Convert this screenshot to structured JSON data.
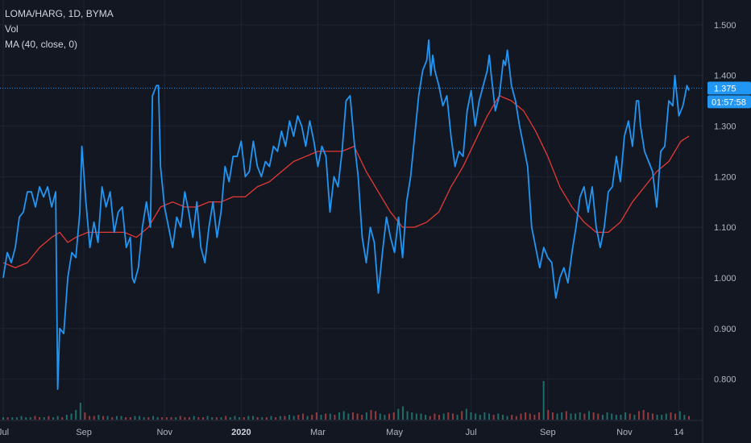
{
  "legend": {
    "symbol": "LOMA/HARG, 1D, BYMA",
    "volume": "Vol",
    "ma": "MA (40, close, 0)"
  },
  "price_axis": {
    "last_price": "1.375",
    "countdown": "01:57:58"
  },
  "colors": {
    "background": "#131722",
    "grid": "#1f2433",
    "price_line": "#2196f3",
    "ma_line": "#e53935",
    "volume_up": "#26a69a",
    "volume_down": "#ef5350",
    "price_tag": "#2196f3"
  },
  "chart_data": {
    "type": "line",
    "yticks": [
      "1.500",
      "1.400",
      "1.300",
      "1.200",
      "1.100",
      "1.000",
      "0.900",
      "0.800"
    ],
    "ylim": [
      0.75,
      1.53
    ],
    "xlim": [
      0,
      340
    ],
    "xticks": [
      {
        "label": "Jul",
        "x": 0
      },
      {
        "label": "Sep",
        "x": 40
      },
      {
        "label": "Nov",
        "x": 80
      },
      {
        "label": "2020",
        "x": 118
      },
      {
        "label": "Mar",
        "x": 156
      },
      {
        "label": "May",
        "x": 194
      },
      {
        "label": "Jul",
        "x": 232
      },
      {
        "label": "Sep",
        "x": 270
      },
      {
        "label": "Nov",
        "x": 308
      },
      {
        "label": "14",
        "x": 335
      }
    ],
    "series": [
      {
        "key": "price",
        "points": [
          [
            0,
            1.0
          ],
          [
            2,
            1.05
          ],
          [
            4,
            1.03
          ],
          [
            6,
            1.06
          ],
          [
            8,
            1.12
          ],
          [
            10,
            1.13
          ],
          [
            12,
            1.17
          ],
          [
            14,
            1.17
          ],
          [
            16,
            1.14
          ],
          [
            18,
            1.18
          ],
          [
            20,
            1.16
          ],
          [
            22,
            1.18
          ],
          [
            24,
            1.14
          ],
          [
            26,
            1.17
          ],
          [
            27,
            0.78
          ],
          [
            28,
            0.9
          ],
          [
            30,
            0.89
          ],
          [
            32,
            1.0
          ],
          [
            34,
            1.05
          ],
          [
            36,
            1.04
          ],
          [
            38,
            1.13
          ],
          [
            39,
            1.26
          ],
          [
            41,
            1.15
          ],
          [
            43,
            1.06
          ],
          [
            45,
            1.11
          ],
          [
            47,
            1.07
          ],
          [
            49,
            1.18
          ],
          [
            51,
            1.14
          ],
          [
            53,
            1.17
          ],
          [
            55,
            1.09
          ],
          [
            57,
            1.13
          ],
          [
            59,
            1.14
          ],
          [
            61,
            1.06
          ],
          [
            63,
            1.08
          ],
          [
            64,
            1.0
          ],
          [
            65,
            0.99
          ],
          [
            67,
            1.02
          ],
          [
            69,
            1.1
          ],
          [
            71,
            1.15
          ],
          [
            73,
            1.1
          ],
          [
            74,
            1.36
          ],
          [
            76,
            1.38
          ],
          [
            77,
            1.38
          ],
          [
            78,
            1.22
          ],
          [
            80,
            1.14
          ],
          [
            82,
            1.1
          ],
          [
            84,
            1.06
          ],
          [
            86,
            1.12
          ],
          [
            88,
            1.1
          ],
          [
            90,
            1.17
          ],
          [
            92,
            1.13
          ],
          [
            94,
            1.08
          ],
          [
            96,
            1.15
          ],
          [
            98,
            1.06
          ],
          [
            100,
            1.03
          ],
          [
            102,
            1.1
          ],
          [
            104,
            1.15
          ],
          [
            106,
            1.08
          ],
          [
            108,
            1.13
          ],
          [
            110,
            1.22
          ],
          [
            112,
            1.19
          ],
          [
            114,
            1.24
          ],
          [
            116,
            1.24
          ],
          [
            118,
            1.27
          ],
          [
            120,
            1.2
          ],
          [
            122,
            1.21
          ],
          [
            124,
            1.27
          ],
          [
            126,
            1.22
          ],
          [
            128,
            1.2
          ],
          [
            130,
            1.23
          ],
          [
            132,
            1.22
          ],
          [
            134,
            1.26
          ],
          [
            136,
            1.25
          ],
          [
            138,
            1.29
          ],
          [
            140,
            1.26
          ],
          [
            142,
            1.31
          ],
          [
            144,
            1.28
          ],
          [
            146,
            1.32
          ],
          [
            148,
            1.3
          ],
          [
            150,
            1.26
          ],
          [
            152,
            1.31
          ],
          [
            154,
            1.27
          ],
          [
            156,
            1.22
          ],
          [
            158,
            1.26
          ],
          [
            160,
            1.24
          ],
          [
            162,
            1.13
          ],
          [
            164,
            1.2
          ],
          [
            166,
            1.18
          ],
          [
            168,
            1.25
          ],
          [
            170,
            1.35
          ],
          [
            172,
            1.36
          ],
          [
            174,
            1.27
          ],
          [
            176,
            1.2
          ],
          [
            178,
            1.08
          ],
          [
            180,
            1.03
          ],
          [
            182,
            1.1
          ],
          [
            184,
            1.07
          ],
          [
            186,
            0.97
          ],
          [
            188,
            1.05
          ],
          [
            190,
            1.12
          ],
          [
            192,
            1.08
          ],
          [
            194,
            1.05
          ],
          [
            196,
            1.12
          ],
          [
            198,
            1.04
          ],
          [
            200,
            1.15
          ],
          [
            202,
            1.2
          ],
          [
            204,
            1.28
          ],
          [
            206,
            1.36
          ],
          [
            208,
            1.41
          ],
          [
            210,
            1.43
          ],
          [
            211,
            1.47
          ],
          [
            212,
            1.4
          ],
          [
            213,
            1.44
          ],
          [
            214,
            1.41
          ],
          [
            216,
            1.38
          ],
          [
            218,
            1.34
          ],
          [
            220,
            1.36
          ],
          [
            222,
            1.28
          ],
          [
            224,
            1.22
          ],
          [
            226,
            1.25
          ],
          [
            228,
            1.24
          ],
          [
            230,
            1.33
          ],
          [
            232,
            1.37
          ],
          [
            234,
            1.3
          ],
          [
            236,
            1.35
          ],
          [
            238,
            1.38
          ],
          [
            240,
            1.41
          ],
          [
            241,
            1.44
          ],
          [
            242,
            1.4
          ],
          [
            244,
            1.33
          ],
          [
            246,
            1.36
          ],
          [
            248,
            1.43
          ],
          [
            249,
            1.42
          ],
          [
            250,
            1.45
          ],
          [
            252,
            1.38
          ],
          [
            254,
            1.35
          ],
          [
            256,
            1.3
          ],
          [
            258,
            1.26
          ],
          [
            260,
            1.22
          ],
          [
            262,
            1.1
          ],
          [
            264,
            1.06
          ],
          [
            266,
            1.02
          ],
          [
            268,
            1.06
          ],
          [
            270,
            1.04
          ],
          [
            272,
            1.03
          ],
          [
            274,
            0.96
          ],
          [
            276,
            1.0
          ],
          [
            278,
            1.02
          ],
          [
            280,
            0.99
          ],
          [
            282,
            1.05
          ],
          [
            284,
            1.1
          ],
          [
            286,
            1.16
          ],
          [
            288,
            1.18
          ],
          [
            290,
            1.13
          ],
          [
            292,
            1.18
          ],
          [
            294,
            1.1
          ],
          [
            296,
            1.06
          ],
          [
            298,
            1.1
          ],
          [
            300,
            1.17
          ],
          [
            302,
            1.18
          ],
          [
            304,
            1.24
          ],
          [
            306,
            1.19
          ],
          [
            308,
            1.28
          ],
          [
            310,
            1.31
          ],
          [
            312,
            1.26
          ],
          [
            314,
            1.35
          ],
          [
            315,
            1.35
          ],
          [
            316,
            1.3
          ],
          [
            318,
            1.25
          ],
          [
            320,
            1.23
          ],
          [
            322,
            1.21
          ],
          [
            324,
            1.14
          ],
          [
            326,
            1.25
          ],
          [
            328,
            1.26
          ],
          [
            330,
            1.35
          ],
          [
            332,
            1.34
          ],
          [
            333,
            1.4
          ],
          [
            335,
            1.32
          ],
          [
            337,
            1.34
          ],
          [
            339,
            1.38
          ],
          [
            340,
            1.37
          ]
        ]
      },
      {
        "key": "ma",
        "points": [
          [
            0,
            1.03
          ],
          [
            6,
            1.02
          ],
          [
            12,
            1.03
          ],
          [
            18,
            1.06
          ],
          [
            24,
            1.08
          ],
          [
            28,
            1.09
          ],
          [
            32,
            1.07
          ],
          [
            36,
            1.08
          ],
          [
            42,
            1.09
          ],
          [
            48,
            1.09
          ],
          [
            54,
            1.09
          ],
          [
            60,
            1.09
          ],
          [
            66,
            1.08
          ],
          [
            72,
            1.1
          ],
          [
            78,
            1.14
          ],
          [
            84,
            1.15
          ],
          [
            90,
            1.14
          ],
          [
            96,
            1.14
          ],
          [
            102,
            1.15
          ],
          [
            108,
            1.15
          ],
          [
            114,
            1.16
          ],
          [
            120,
            1.16
          ],
          [
            126,
            1.18
          ],
          [
            132,
            1.19
          ],
          [
            138,
            1.21
          ],
          [
            144,
            1.23
          ],
          [
            150,
            1.24
          ],
          [
            156,
            1.25
          ],
          [
            162,
            1.25
          ],
          [
            168,
            1.25
          ],
          [
            174,
            1.26
          ],
          [
            180,
            1.21
          ],
          [
            186,
            1.17
          ],
          [
            192,
            1.13
          ],
          [
            198,
            1.1
          ],
          [
            204,
            1.1
          ],
          [
            210,
            1.11
          ],
          [
            216,
            1.13
          ],
          [
            222,
            1.18
          ],
          [
            228,
            1.22
          ],
          [
            234,
            1.27
          ],
          [
            240,
            1.32
          ],
          [
            246,
            1.36
          ],
          [
            252,
            1.35
          ],
          [
            258,
            1.33
          ],
          [
            264,
            1.29
          ],
          [
            270,
            1.24
          ],
          [
            276,
            1.18
          ],
          [
            282,
            1.14
          ],
          [
            288,
            1.11
          ],
          [
            294,
            1.09
          ],
          [
            300,
            1.09
          ],
          [
            306,
            1.11
          ],
          [
            312,
            1.15
          ],
          [
            318,
            1.18
          ],
          [
            324,
            1.21
          ],
          [
            330,
            1.23
          ],
          [
            336,
            1.27
          ],
          [
            340,
            1.28
          ]
        ]
      }
    ],
    "volume": [
      2,
      2,
      2,
      2,
      3,
      2,
      2,
      3,
      2,
      2,
      3,
      2,
      3,
      2,
      4,
      5,
      8,
      14,
      6,
      3,
      3,
      4,
      3,
      3,
      2,
      3,
      3,
      2,
      2,
      3,
      3,
      2,
      2,
      3,
      2,
      2,
      2,
      2,
      2,
      3,
      2,
      2,
      3,
      2,
      2,
      3,
      2,
      2,
      2,
      3,
      2,
      3,
      2,
      2,
      3,
      3,
      2,
      2,
      2,
      3,
      2,
      3,
      3,
      4,
      3,
      4,
      5,
      3,
      4,
      6,
      4,
      5,
      5,
      4,
      6,
      7,
      5,
      6,
      5,
      4,
      6,
      8,
      7,
      5,
      4,
      5,
      6,
      9,
      11,
      7,
      6,
      5,
      5,
      4,
      3,
      5,
      4,
      5,
      6,
      5,
      4,
      7,
      9,
      6,
      5,
      4,
      6,
      5,
      4,
      5,
      4,
      3,
      4,
      3,
      5,
      6,
      5,
      4,
      6,
      32,
      8,
      6,
      5,
      6,
      7,
      5,
      5,
      6,
      5,
      7,
      6,
      5,
      4,
      6,
      5,
      4,
      4,
      6,
      5,
      4,
      7,
      8,
      6,
      5,
      4,
      4,
      5,
      6,
      5,
      7,
      4,
      3
    ],
    "last_value": 1.375
  }
}
